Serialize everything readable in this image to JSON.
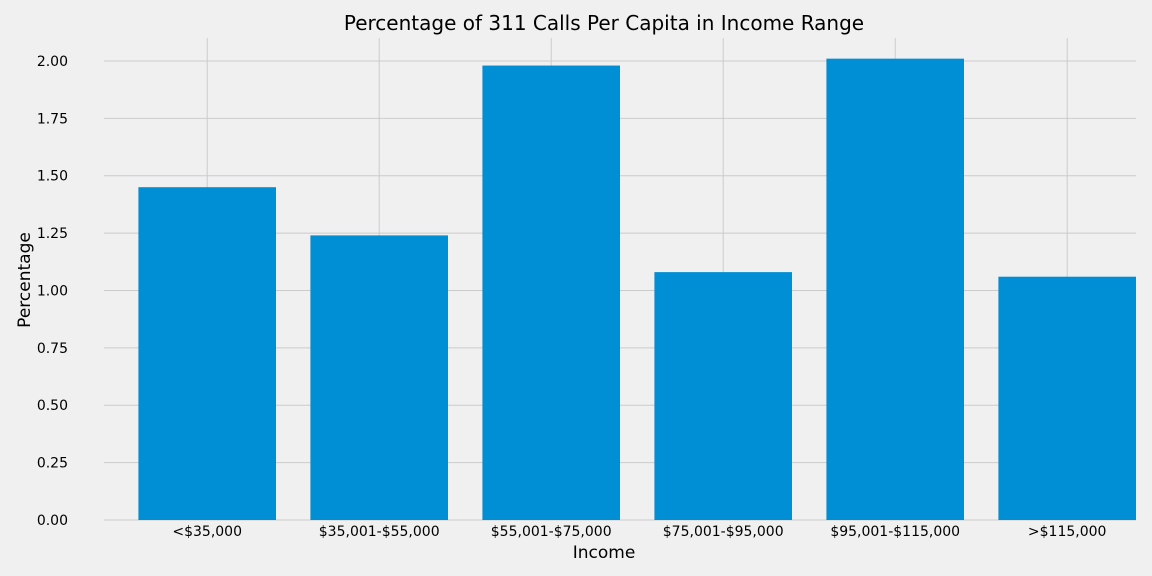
{
  "chart_data": {
    "type": "bar",
    "title": "Percentage of 311 Calls Per Capita in Income Range",
    "xlabel": "Income",
    "ylabel": "Percentage",
    "categories": [
      "<$35,000",
      "$35,001-$55,000",
      "$55,001-$75,000",
      "$75,001-$95,000",
      "$95,001-$115,000",
      ">$115,000"
    ],
    "values": [
      1.45,
      1.24,
      1.98,
      1.08,
      2.01,
      1.06
    ],
    "ylim": [
      0,
      2.1
    ],
    "yticks": [
      "0.00",
      "0.25",
      "0.50",
      "0.75",
      "1.00",
      "1.25",
      "1.50",
      "1.75",
      "2.00"
    ],
    "grid": true,
    "bar_color": "#008fd5",
    "background_color": "#f0f0f0",
    "grid_color": "#cbcbcb"
  }
}
